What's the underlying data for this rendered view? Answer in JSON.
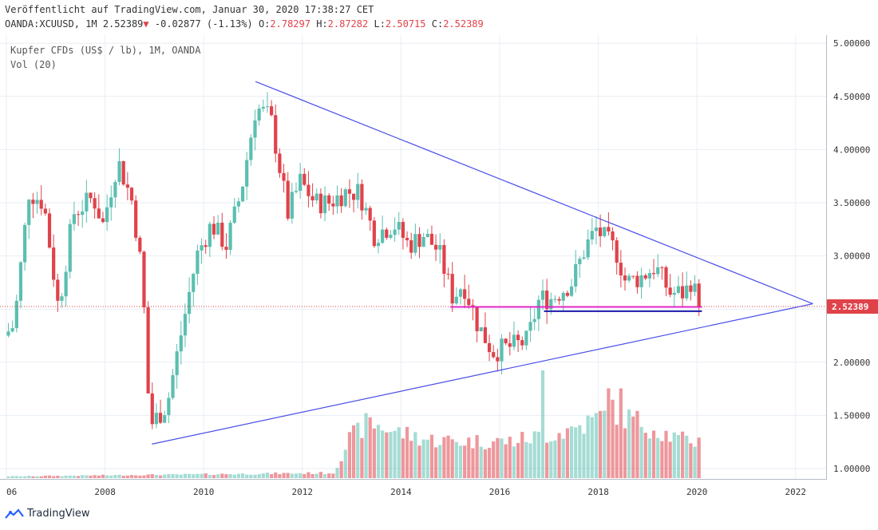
{
  "header": {
    "published": "Veröffentlicht auf TradingView.com, Januar 30, 2020 17:38:27 CET",
    "symbol": "OANDA:XCUUSD, 1M",
    "last": "2.52389",
    "change": "-0.02877 (-1.13%)",
    "o_label": "O:",
    "o_value": "2.78297",
    "h_label": "H:",
    "h_value": "2.87282",
    "l_label": "L:",
    "l_value": "2.50715",
    "c_label": "C:",
    "c_value": "2.52389"
  },
  "legend": {
    "title": "Kupfer CFDs (US$ / lb), 1M, OANDA",
    "volume": "Vol (20)"
  },
  "footer": {
    "brand": "TradingView"
  },
  "colors": {
    "up": "#5bbfb0",
    "down": "#e0424a",
    "trend": "#4a4ee8",
    "support": "#e020e0",
    "support2": "#1a1aaa",
    "price_line": "#e0424a",
    "grid": "#e9eef4"
  },
  "chart_data": {
    "type": "candlestick",
    "title": "Kupfer CFDs (US$ / lb), 1M, OANDA",
    "x_ticks": [
      "06",
      "2008",
      "2010",
      "2012",
      "2014",
      "2016",
      "2018",
      "2020",
      "2022"
    ],
    "y_ticks": [
      "1.00000",
      "1.50000",
      "2.00000",
      "2.50000",
      "3.00000",
      "3.50000",
      "4.00000",
      "4.50000",
      "5.00000"
    ],
    "ylim": [
      0.92,
      5.08
    ],
    "xlim": [
      2006.0,
      2023.3
    ],
    "last_price_label": "2.52389",
    "last_price": 2.52389,
    "price_anchors": [
      [
        2006.0,
        2.25
      ],
      [
        2006.2,
        2.35
      ],
      [
        2006.5,
        3.6
      ],
      [
        2006.8,
        3.5
      ],
      [
        2007.1,
        2.5
      ],
      [
        2007.4,
        3.4
      ],
      [
        2007.8,
        3.55
      ],
      [
        2008.0,
        3.3
      ],
      [
        2008.3,
        3.9
      ],
      [
        2008.6,
        3.5
      ],
      [
        2008.8,
        2.8
      ],
      [
        2008.95,
        1.4
      ],
      [
        2009.3,
        1.6
      ],
      [
        2009.6,
        2.3
      ],
      [
        2009.9,
        3.0
      ],
      [
        2010.2,
        3.3
      ],
      [
        2010.5,
        3.1
      ],
      [
        2010.8,
        3.6
      ],
      [
        2011.1,
        4.4
      ],
      [
        2011.4,
        4.3
      ],
      [
        2011.75,
        3.4
      ],
      [
        2012.0,
        3.7
      ],
      [
        2012.3,
        3.5
      ],
      [
        2012.6,
        3.5
      ],
      [
        2012.9,
        3.6
      ],
      [
        2013.2,
        3.6
      ],
      [
        2013.5,
        3.2
      ],
      [
        2013.9,
        3.3
      ],
      [
        2014.2,
        3.1
      ],
      [
        2014.5,
        3.2
      ],
      [
        2014.8,
        3.05
      ],
      [
        2015.1,
        2.6
      ],
      [
        2015.3,
        2.75
      ],
      [
        2015.6,
        2.35
      ],
      [
        2015.9,
        2.1
      ],
      [
        2016.3,
        2.15
      ],
      [
        2016.6,
        2.2
      ],
      [
        2016.85,
        2.6
      ],
      [
        2017.1,
        2.6
      ],
      [
        2017.5,
        2.75
      ],
      [
        2017.8,
        3.1
      ],
      [
        2018.0,
        3.25
      ],
      [
        2018.4,
        3.05
      ],
      [
        2018.6,
        2.75
      ],
      [
        2018.9,
        2.8
      ],
      [
        2019.2,
        2.9
      ],
      [
        2019.5,
        2.65
      ],
      [
        2019.8,
        2.65
      ],
      [
        2019.95,
        2.8
      ],
      [
        2020.05,
        2.52
      ]
    ],
    "volume_anchors": [
      [
        2006.0,
        0.01
      ],
      [
        2012.6,
        0.03
      ],
      [
        2012.9,
        0.22
      ],
      [
        2013.3,
        0.32
      ],
      [
        2013.8,
        0.27
      ],
      [
        2014.5,
        0.22
      ],
      [
        2015.2,
        0.21
      ],
      [
        2016.2,
        0.21
      ],
      [
        2016.8,
        0.24
      ],
      [
        2017.2,
        0.26
      ],
      [
        2017.8,
        0.32
      ],
      [
        2018.2,
        0.38
      ],
      [
        2018.7,
        0.33
      ],
      [
        2019.2,
        0.27
      ],
      [
        2019.6,
        0.22
      ],
      [
        2020.05,
        0.21
      ]
    ],
    "volume_spikes": [
      [
        2016.82,
        0.6
      ],
      [
        2018.15,
        0.5
      ],
      [
        2018.45,
        0.5
      ]
    ],
    "trendlines": [
      {
        "name": "upper",
        "from": [
          2011.05,
          4.64
        ],
        "to": [
          2022.35,
          2.55
        ]
      },
      {
        "name": "lower",
        "from": [
          2008.95,
          1.23
        ],
        "to": [
          2022.35,
          2.55
        ]
      }
    ],
    "support_lines": [
      {
        "name": "support-magenta",
        "from": [
          2015.0,
          2.52
        ],
        "to": [
          2020.1,
          2.52
        ]
      },
      {
        "name": "support-blue",
        "from": [
          2016.9,
          2.48
        ],
        "to": [
          2020.1,
          2.48
        ]
      }
    ],
    "grid": true,
    "scale": "right"
  }
}
